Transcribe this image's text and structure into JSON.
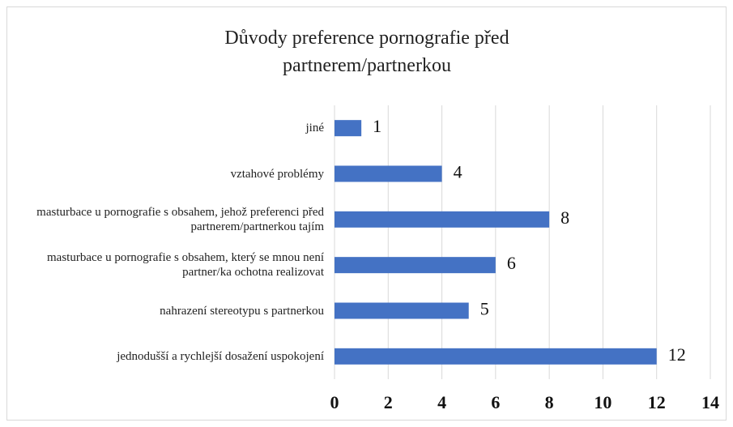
{
  "chart_data": {
    "type": "bar",
    "orientation": "horizontal",
    "title": "Důvody preference pornografie před partnerem/partnerkou",
    "categories": [
      "jiné",
      "vztahové problémy",
      "masturbace u pornografie s obsahem, jehož preferenci před partnerem/partnerkou tajím",
      "masturbace u pornografie s obsahem, který se mnou není partner/ka ochotna realizovat",
      "nahrazení stereotypu s partnerkou",
      "jednodušší a rychlejší dosažení uspokojení"
    ],
    "values": [
      1,
      4,
      8,
      6,
      5,
      12
    ],
    "color": "#4472c4",
    "xlim": [
      0,
      14
    ],
    "xticks": [
      0,
      2,
      4,
      6,
      8,
      10,
      12,
      14
    ],
    "grid": true
  }
}
